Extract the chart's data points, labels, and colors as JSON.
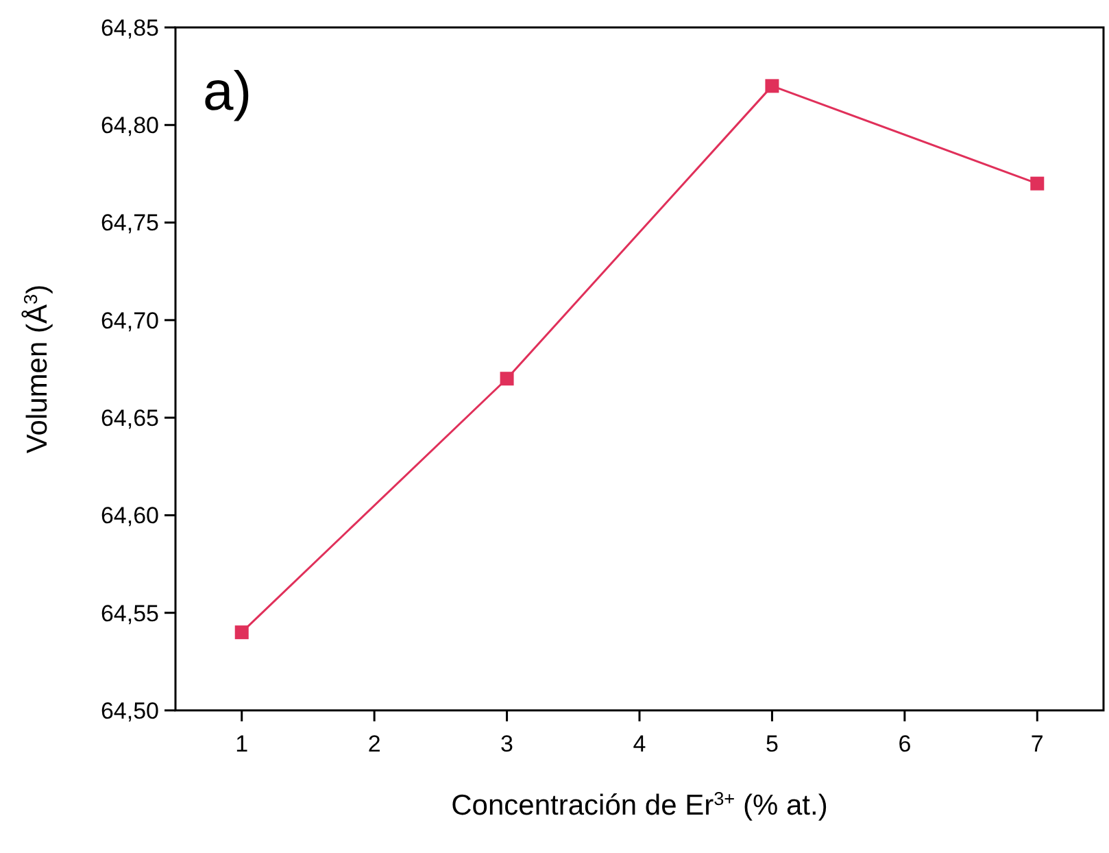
{
  "chart_data": {
    "type": "line",
    "xlabel": "Concentración de Er$^{3+}$ (% at.)",
    "ylabel": "Volumen (Å$^{3}$)",
    "annotations": [
      "a)"
    ],
    "x": [
      1,
      3,
      5,
      7
    ],
    "series": [
      {
        "color": "#e0305a",
        "values": [
          64.54,
          64.67,
          64.82,
          64.77
        ]
      }
    ],
    "xlim": [
      0.5,
      7.5
    ],
    "xticks": [
      1,
      2,
      3,
      4,
      5,
      6,
      7
    ],
    "ylim": [
      64.5,
      64.85
    ],
    "yticks": [
      {
        "value": 64.5,
        "label": "64,50"
      },
      {
        "value": 64.55,
        "label": "64,55"
      },
      {
        "value": 64.6,
        "label": "64,60"
      },
      {
        "value": 64.65,
        "label": "64,65"
      },
      {
        "value": 64.7,
        "label": "64,70"
      },
      {
        "value": 64.75,
        "label": "64,75"
      },
      {
        "value": 64.8,
        "label": "64,80"
      },
      {
        "value": 64.85,
        "label": "64,85"
      }
    ],
    "marker": "square",
    "line_style": "solid"
  }
}
